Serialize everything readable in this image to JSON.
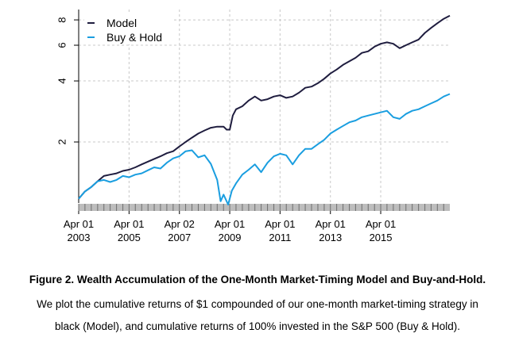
{
  "chart_data": {
    "type": "line",
    "y_scale": "log",
    "ylim": [
      1,
      9
    ],
    "y_ticks": [
      2,
      4,
      6,
      8
    ],
    "x_range": [
      "2003-04-01",
      "2017-12-29"
    ],
    "x_ticks": [
      {
        "date": "2003-04-01",
        "line1": "Apr 01",
        "line2": "2003"
      },
      {
        "date": "2005-04-01",
        "line1": "Apr 01",
        "line2": "2005"
      },
      {
        "date": "2007-04-02",
        "line1": "Apr 02",
        "line2": "2007"
      },
      {
        "date": "2009-04-01",
        "line1": "Apr 01",
        "line2": "2009"
      },
      {
        "date": "2011-04-01",
        "line1": "Apr 01",
        "line2": "2011"
      },
      {
        "date": "2013-04-01",
        "line1": "Apr 01",
        "line2": "2013"
      },
      {
        "date": "2015-04-01",
        "line1": "Apr 01",
        "line2": "2015"
      }
    ],
    "grid": true,
    "legend_position": "top-left",
    "series": [
      {
        "name": "Model",
        "color": "#1f1d3f",
        "points": [
          [
            "2003-04-01",
            1.05
          ],
          [
            "2003-07-01",
            1.14
          ],
          [
            "2003-10-01",
            1.2
          ],
          [
            "2004-01-01",
            1.28
          ],
          [
            "2004-04-01",
            1.36
          ],
          [
            "2004-07-01",
            1.38
          ],
          [
            "2004-10-01",
            1.4
          ],
          [
            "2005-01-01",
            1.44
          ],
          [
            "2005-04-01",
            1.46
          ],
          [
            "2005-07-01",
            1.5
          ],
          [
            "2005-10-01",
            1.55
          ],
          [
            "2006-01-01",
            1.6
          ],
          [
            "2006-04-01",
            1.65
          ],
          [
            "2006-07-01",
            1.7
          ],
          [
            "2006-10-01",
            1.76
          ],
          [
            "2007-01-01",
            1.8
          ],
          [
            "2007-04-01",
            1.9
          ],
          [
            "2007-07-01",
            2.0
          ],
          [
            "2007-10-01",
            2.1
          ],
          [
            "2008-01-01",
            2.2
          ],
          [
            "2008-04-01",
            2.28
          ],
          [
            "2008-07-01",
            2.35
          ],
          [
            "2008-10-01",
            2.38
          ],
          [
            "2009-01-01",
            2.38
          ],
          [
            "2009-02-15",
            2.3
          ],
          [
            "2009-04-01",
            2.3
          ],
          [
            "2009-05-15",
            2.7
          ],
          [
            "2009-07-01",
            2.9
          ],
          [
            "2009-10-01",
            3.0
          ],
          [
            "2010-01-01",
            3.2
          ],
          [
            "2010-04-01",
            3.35
          ],
          [
            "2010-07-01",
            3.2
          ],
          [
            "2010-10-01",
            3.25
          ],
          [
            "2011-01-01",
            3.35
          ],
          [
            "2011-04-01",
            3.4
          ],
          [
            "2011-07-01",
            3.3
          ],
          [
            "2011-10-01",
            3.35
          ],
          [
            "2012-01-01",
            3.5
          ],
          [
            "2012-04-01",
            3.7
          ],
          [
            "2012-07-01",
            3.75
          ],
          [
            "2012-10-01",
            3.9
          ],
          [
            "2013-01-01",
            4.1
          ],
          [
            "2013-04-01",
            4.35
          ],
          [
            "2013-07-01",
            4.55
          ],
          [
            "2013-10-01",
            4.8
          ],
          [
            "2014-01-01",
            5.0
          ],
          [
            "2014-04-01",
            5.2
          ],
          [
            "2014-07-01",
            5.5
          ],
          [
            "2014-10-01",
            5.6
          ],
          [
            "2015-01-01",
            5.9
          ],
          [
            "2015-04-01",
            6.1
          ],
          [
            "2015-07-01",
            6.2
          ],
          [
            "2015-10-01",
            6.1
          ],
          [
            "2016-01-01",
            5.8
          ],
          [
            "2016-04-01",
            6.0
          ],
          [
            "2016-07-01",
            6.2
          ],
          [
            "2016-10-01",
            6.4
          ],
          [
            "2017-01-01",
            6.9
          ],
          [
            "2017-04-01",
            7.3
          ],
          [
            "2017-07-01",
            7.7
          ],
          [
            "2017-10-01",
            8.1
          ],
          [
            "2017-12-29",
            8.4
          ]
        ]
      },
      {
        "name": "Buy & Hold",
        "color": "#1a9ee0",
        "points": [
          [
            "2003-04-01",
            1.05
          ],
          [
            "2003-07-01",
            1.14
          ],
          [
            "2003-10-01",
            1.2
          ],
          [
            "2004-01-01",
            1.28
          ],
          [
            "2004-04-01",
            1.3
          ],
          [
            "2004-07-01",
            1.27
          ],
          [
            "2004-10-01",
            1.3
          ],
          [
            "2005-01-01",
            1.36
          ],
          [
            "2005-04-01",
            1.34
          ],
          [
            "2005-07-01",
            1.38
          ],
          [
            "2005-10-01",
            1.4
          ],
          [
            "2006-01-01",
            1.45
          ],
          [
            "2006-04-01",
            1.5
          ],
          [
            "2006-07-01",
            1.48
          ],
          [
            "2006-10-01",
            1.58
          ],
          [
            "2007-01-01",
            1.66
          ],
          [
            "2007-04-01",
            1.7
          ],
          [
            "2007-07-01",
            1.8
          ],
          [
            "2007-10-01",
            1.82
          ],
          [
            "2008-01-01",
            1.68
          ],
          [
            "2008-04-01",
            1.72
          ],
          [
            "2008-07-01",
            1.56
          ],
          [
            "2008-10-01",
            1.3
          ],
          [
            "2008-11-20",
            1.02
          ],
          [
            "2009-01-01",
            1.1
          ],
          [
            "2009-03-09",
            0.98
          ],
          [
            "2009-05-01",
            1.15
          ],
          [
            "2009-07-01",
            1.25
          ],
          [
            "2009-10-01",
            1.38
          ],
          [
            "2010-01-01",
            1.46
          ],
          [
            "2010-04-01",
            1.55
          ],
          [
            "2010-07-01",
            1.42
          ],
          [
            "2010-10-01",
            1.58
          ],
          [
            "2011-01-01",
            1.7
          ],
          [
            "2011-04-01",
            1.75
          ],
          [
            "2011-07-01",
            1.72
          ],
          [
            "2011-10-01",
            1.55
          ],
          [
            "2012-01-01",
            1.72
          ],
          [
            "2012-04-01",
            1.85
          ],
          [
            "2012-07-01",
            1.85
          ],
          [
            "2012-10-01",
            1.95
          ],
          [
            "2013-01-01",
            2.05
          ],
          [
            "2013-04-01",
            2.2
          ],
          [
            "2013-07-01",
            2.3
          ],
          [
            "2013-10-01",
            2.4
          ],
          [
            "2014-01-01",
            2.5
          ],
          [
            "2014-04-01",
            2.55
          ],
          [
            "2014-07-01",
            2.65
          ],
          [
            "2014-10-01",
            2.7
          ],
          [
            "2015-01-01",
            2.75
          ],
          [
            "2015-04-01",
            2.8
          ],
          [
            "2015-07-01",
            2.85
          ],
          [
            "2015-10-01",
            2.65
          ],
          [
            "2016-01-01",
            2.6
          ],
          [
            "2016-04-01",
            2.75
          ],
          [
            "2016-07-01",
            2.85
          ],
          [
            "2016-10-01",
            2.9
          ],
          [
            "2017-01-01",
            3.0
          ],
          [
            "2017-04-01",
            3.1
          ],
          [
            "2017-07-01",
            3.2
          ],
          [
            "2017-10-01",
            3.35
          ],
          [
            "2017-12-29",
            3.45
          ]
        ]
      }
    ]
  },
  "caption": {
    "title": "Figure 2. Wealth Accumulation of the One-Month Market-Timing Model and Buy-and-Hold.",
    "line1": "We plot the cumulative returns of $1 compounded of our one-month market-timing strategy in",
    "line2": "black (Model), and cumulative returns of 100% invested in the S&P 500 (Buy & Hold)."
  }
}
